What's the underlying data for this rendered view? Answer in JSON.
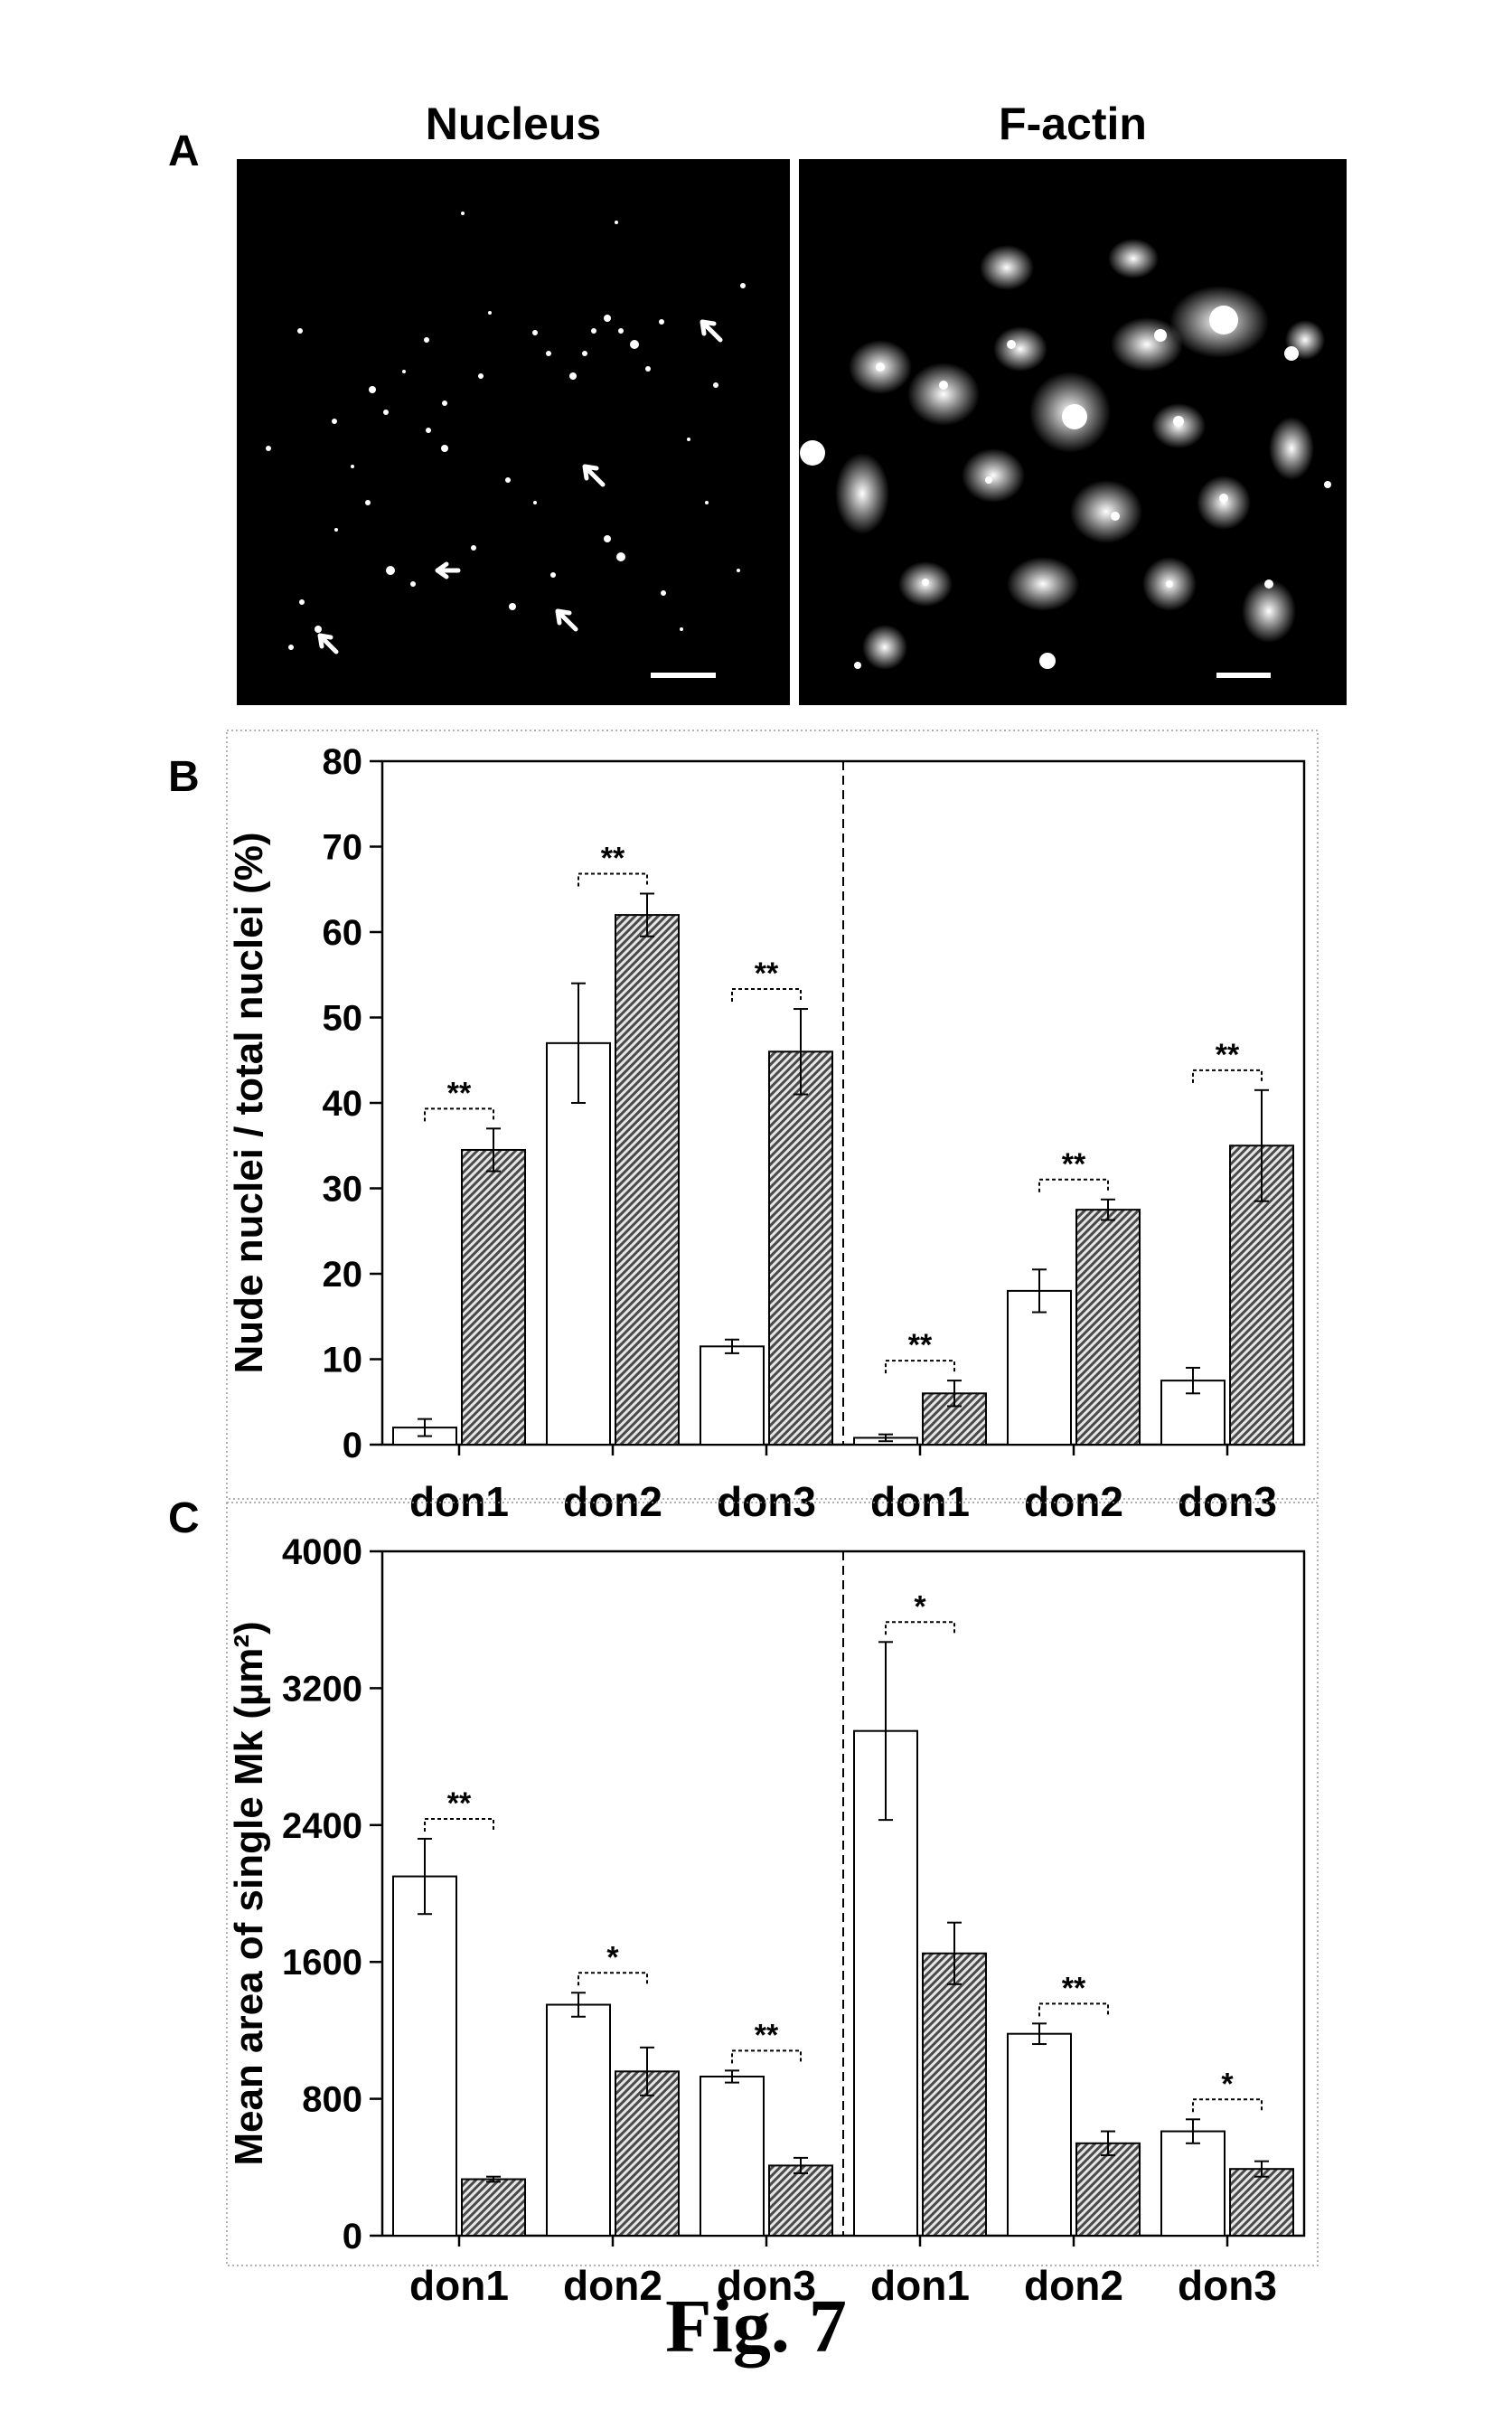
{
  "panel_a": {
    "letter": "A",
    "left_title": "Nucleus",
    "right_title": "F-actin"
  },
  "chart_data": [
    {
      "panel": "B",
      "type": "bar",
      "ylabel": "Nude nuclei / total nuclei (%)",
      "ylim": [
        0,
        80
      ],
      "yticks": [
        0,
        10,
        20,
        30,
        40,
        50,
        60,
        70,
        80
      ],
      "categories": [
        "don1",
        "don2",
        "don3",
        "don1",
        "don2",
        "don3"
      ],
      "divider_after_index": 2,
      "series": [
        {
          "style": "open",
          "color": "#ffffff",
          "values": [
            2,
            47,
            11.5,
            0.8,
            18,
            7.5
          ],
          "errors": [
            1,
            7,
            0.8,
            0.4,
            2.5,
            1.5
          ]
        },
        {
          "style": "hatched",
          "color": "#6f6f6f",
          "values": [
            34.5,
            62,
            46,
            6,
            27.5,
            35
          ],
          "errors": [
            2.5,
            2.5,
            5,
            1.5,
            1.2,
            6.5
          ]
        }
      ],
      "significance": [
        "**",
        "**",
        "**",
        "**",
        "**",
        "**"
      ],
      "grid": false
    },
    {
      "panel": "C",
      "type": "bar",
      "ylabel": "Mean area of single Mk (µm²)",
      "ylim": [
        0,
        4000
      ],
      "yticks": [
        0,
        800,
        1600,
        2400,
        3200,
        4000
      ],
      "categories": [
        "don1",
        "don2",
        "don3",
        "don1",
        "don2",
        "don3"
      ],
      "divider_after_index": 2,
      "series": [
        {
          "style": "open",
          "color": "#ffffff",
          "values": [
            2100,
            1350,
            930,
            2950,
            1180,
            610
          ],
          "errors": [
            220,
            70,
            35,
            520,
            60,
            70
          ]
        },
        {
          "style": "hatched",
          "color": "#6f6f6f",
          "values": [
            330,
            960,
            410,
            1650,
            540,
            390
          ],
          "errors": [
            15,
            140,
            45,
            180,
            70,
            45
          ]
        }
      ],
      "significance": [
        "**",
        "*",
        "**",
        "*",
        "**",
        "*"
      ],
      "grid": false
    }
  ],
  "caption": "Fig. 7"
}
